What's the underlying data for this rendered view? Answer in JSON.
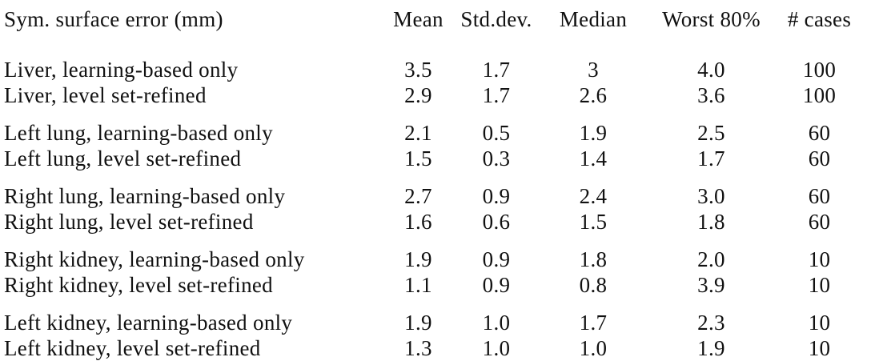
{
  "colors": {
    "text": "#111111",
    "background": "#ffffff"
  },
  "table": {
    "corner_label": "Sym. surface error (mm)",
    "columns": [
      "Mean",
      "Std.dev.",
      "Median",
      "Worst 80%",
      "# cases"
    ],
    "groups": [
      {
        "rows": [
          {
            "label": "Liver, learning-based only",
            "mean": "3.5",
            "std_dev": "1.7",
            "median": "3",
            "worst_80": "4.0",
            "num_cases": "100"
          },
          {
            "label": "Liver, level set-refined",
            "mean": "2.9",
            "std_dev": "1.7",
            "median": "2.6",
            "worst_80": "3.6",
            "num_cases": "100"
          }
        ]
      },
      {
        "rows": [
          {
            "label": "Left lung, learning-based only",
            "mean": "2.1",
            "std_dev": "0.5",
            "median": "1.9",
            "worst_80": "2.5",
            "num_cases": "60"
          },
          {
            "label": "Left lung, level set-refined",
            "mean": "1.5",
            "std_dev": "0.3",
            "median": "1.4",
            "worst_80": "1.7",
            "num_cases": "60"
          }
        ]
      },
      {
        "rows": [
          {
            "label": "Right lung, learning-based only",
            "mean": "2.7",
            "std_dev": "0.9",
            "median": "2.4",
            "worst_80": "3.0",
            "num_cases": "60"
          },
          {
            "label": "Right lung, level set-refined",
            "mean": "1.6",
            "std_dev": "0.6",
            "median": "1.5",
            "worst_80": "1.8",
            "num_cases": "60"
          }
        ]
      },
      {
        "rows": [
          {
            "label": "Right kidney, learning-based only",
            "mean": "1.9",
            "std_dev": "0.9",
            "median": "1.8",
            "worst_80": "2.0",
            "num_cases": "10"
          },
          {
            "label": "Right kidney, level set-refined",
            "mean": "1.1",
            "std_dev": "0.9",
            "median": "0.8",
            "worst_80": "3.9",
            "num_cases": "10"
          }
        ]
      },
      {
        "rows": [
          {
            "label": "Left kidney, learning-based only",
            "mean": "1.9",
            "std_dev": "1.0",
            "median": "1.7",
            "worst_80": "2.3",
            "num_cases": "10"
          },
          {
            "label": "Left kidney, level set-refined",
            "mean": "1.3",
            "std_dev": "1.0",
            "median": "1.0",
            "worst_80": "1.9",
            "num_cases": "10"
          }
        ]
      }
    ]
  }
}
